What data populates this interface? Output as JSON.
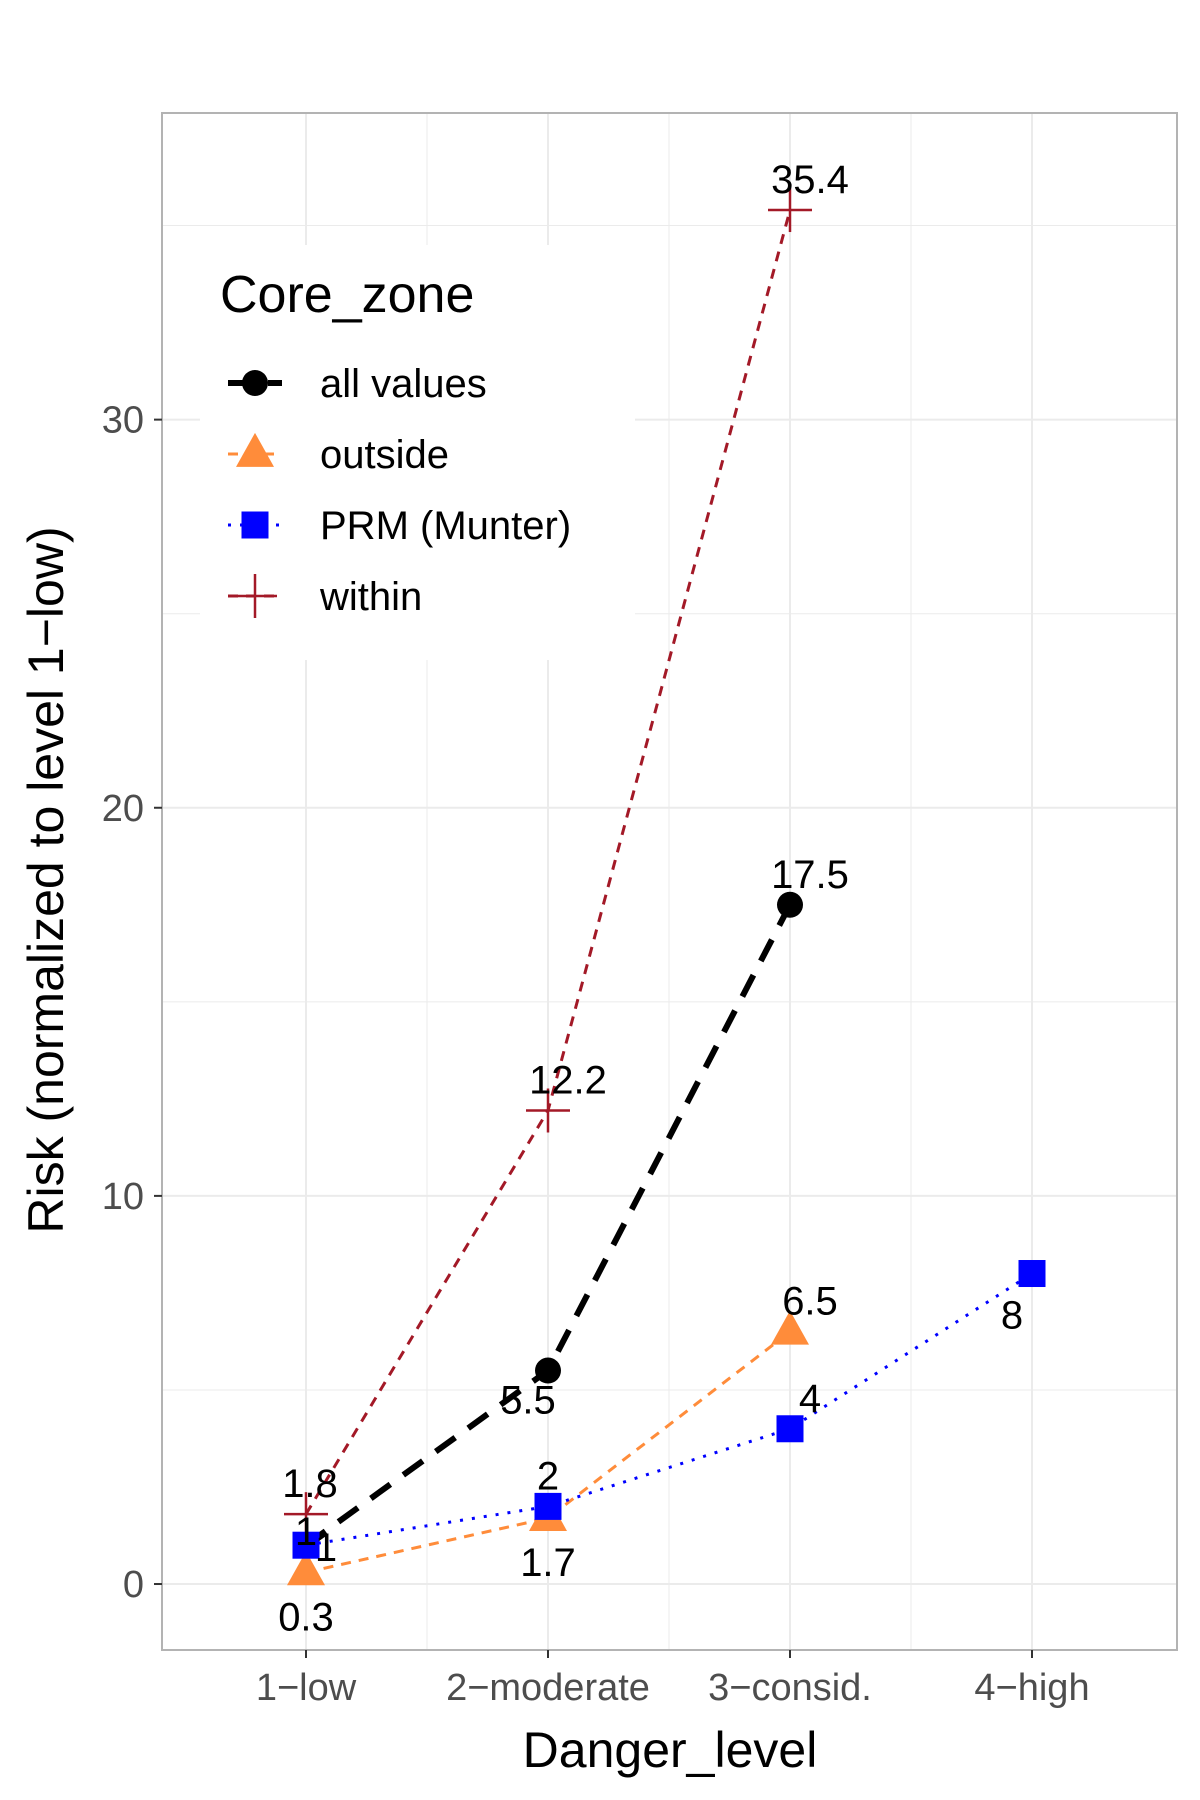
{
  "chart_data": {
    "type": "line",
    "title": "",
    "xlabel": "Danger_level",
    "ylabel": "Risk (normalized to level 1−low)",
    "categories": [
      "1−low",
      "2−moderate",
      "3−consid.",
      "4−high"
    ],
    "ylim": [
      -1.7,
      37.9
    ],
    "yticks": [
      0,
      10,
      20,
      30
    ],
    "ytick_labels": [
      "0",
      "10",
      "20",
      "30"
    ],
    "grid": true,
    "legend": {
      "title": "Core_zone",
      "placement": "top-left"
    },
    "series": [
      {
        "name": "all values",
        "color": "#000000",
        "marker": "circle",
        "line": "bold-dashed",
        "values": [
          1,
          5.5,
          17.5,
          null
        ],
        "labels": [
          "1",
          "5.5",
          "17.5",
          ""
        ]
      },
      {
        "name": "outside",
        "color": "#ff8c3a",
        "marker": "triangle",
        "line": "dashed",
        "values": [
          0.3,
          1.7,
          6.5,
          null
        ],
        "labels": [
          "0.3",
          "1.7",
          "6.5",
          ""
        ]
      },
      {
        "name": "PRM (Munter)",
        "color": "#0000ff",
        "marker": "square",
        "line": "dotted",
        "values": [
          1,
          2,
          4,
          8
        ],
        "labels": [
          "1",
          "2",
          "4",
          "8"
        ]
      },
      {
        "name": "within",
        "color": "#a31927",
        "marker": "plus",
        "line": "dashed",
        "values": [
          1.8,
          12.2,
          35.4,
          null
        ],
        "labels": [
          "1.8",
          "12.2",
          "35.4",
          ""
        ]
      }
    ]
  }
}
